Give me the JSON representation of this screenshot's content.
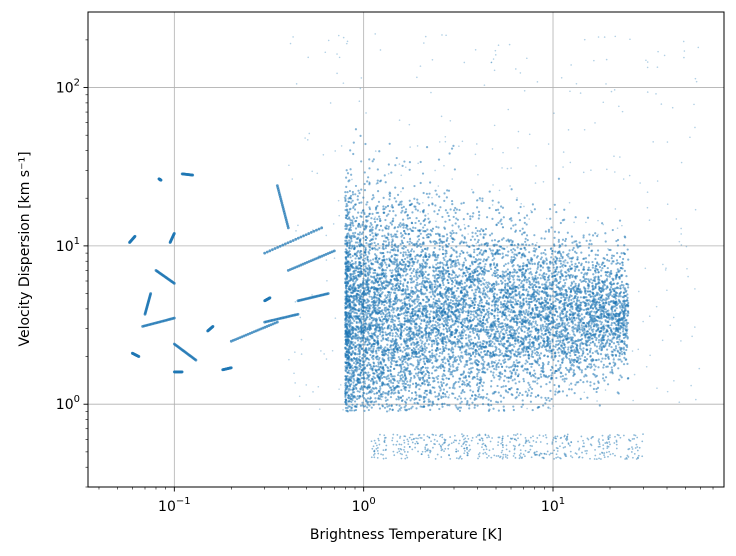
{
  "chart_data": {
    "type": "scatter",
    "xlabel": "Brightness Temperature [K]",
    "ylabel": "Velocity Dispersion [km s⁻¹]",
    "xscale": "log",
    "yscale": "log",
    "xlim": [
      0.035,
      80
    ],
    "ylim": [
      0.3,
      300
    ],
    "xticks": [
      {
        "value": 0.1,
        "base": "10",
        "exp": "−1"
      },
      {
        "value": 1,
        "base": "10",
        "exp": "0"
      },
      {
        "value": 10,
        "base": "10",
        "exp": "1"
      }
    ],
    "yticks": [
      {
        "value": 1,
        "base": "10",
        "exp": "0"
      },
      {
        "value": 10,
        "base": "10",
        "exp": "1"
      },
      {
        "value": 100,
        "base": "10",
        "exp": "2"
      }
    ],
    "grid": true,
    "marker_color": "#1f77b4",
    "series": [
      {
        "description_of_distribution": "dense cloud of points",
        "main_cloud_x_range": [
          0.8,
          25
        ],
        "main_cloud_y_range": [
          0.9,
          120
        ],
        "low_branch_x_range": [
          1.1,
          30
        ],
        "low_branch_y_range": [
          0.45,
          0.65
        ],
        "tracks": [
          {
            "x": [
              0.058,
              0.062
            ],
            "y": [
              10.5,
              11.5
            ]
          },
          {
            "x": [
              0.095,
              0.1
            ],
            "y": [
              10.5,
              12
            ]
          },
          {
            "x": [
              0.11,
              0.125
            ],
            "y": [
              28.5,
              28
            ]
          },
          {
            "x": [
              0.083,
              0.085
            ],
            "y": [
              26.5,
              26
            ]
          },
          {
            "x": [
              0.08,
              0.1
            ],
            "y": [
              7,
              5.8
            ]
          },
          {
            "x": [
              0.07,
              0.075
            ],
            "y": [
              3.7,
              5
            ]
          },
          {
            "x": [
              0.068,
              0.1
            ],
            "y": [
              3.1,
              3.5
            ]
          },
          {
            "x": [
              0.1,
              0.13
            ],
            "y": [
              2.4,
              1.9
            ]
          },
          {
            "x": [
              0.06,
              0.065
            ],
            "y": [
              2.1,
              2
            ]
          },
          {
            "x": [
              0.1,
              0.11
            ],
            "y": [
              1.6,
              1.6
            ]
          },
          {
            "x": [
              0.18,
              0.2
            ],
            "y": [
              1.65,
              1.7
            ]
          },
          {
            "x": [
              0.2,
              0.35
            ],
            "y": [
              2.5,
              3.3
            ]
          },
          {
            "x": [
              0.3,
              0.45
            ],
            "y": [
              3.3,
              3.7
            ]
          },
          {
            "x": [
              0.35,
              0.4
            ],
            "y": [
              24,
              13
            ]
          },
          {
            "x": [
              0.3,
              0.6
            ],
            "y": [
              9,
              13
            ]
          },
          {
            "x": [
              0.4,
              0.7
            ],
            "y": [
              7,
              9.3
            ]
          },
          {
            "x": [
              0.45,
              0.65
            ],
            "y": [
              4.5,
              5
            ]
          },
          {
            "x": [
              0.15,
              0.16
            ],
            "y": [
              2.9,
              3.1
            ]
          },
          {
            "x": [
              0.3,
              0.32
            ],
            "y": [
              4.5,
              4.7
            ]
          }
        ]
      }
    ]
  }
}
